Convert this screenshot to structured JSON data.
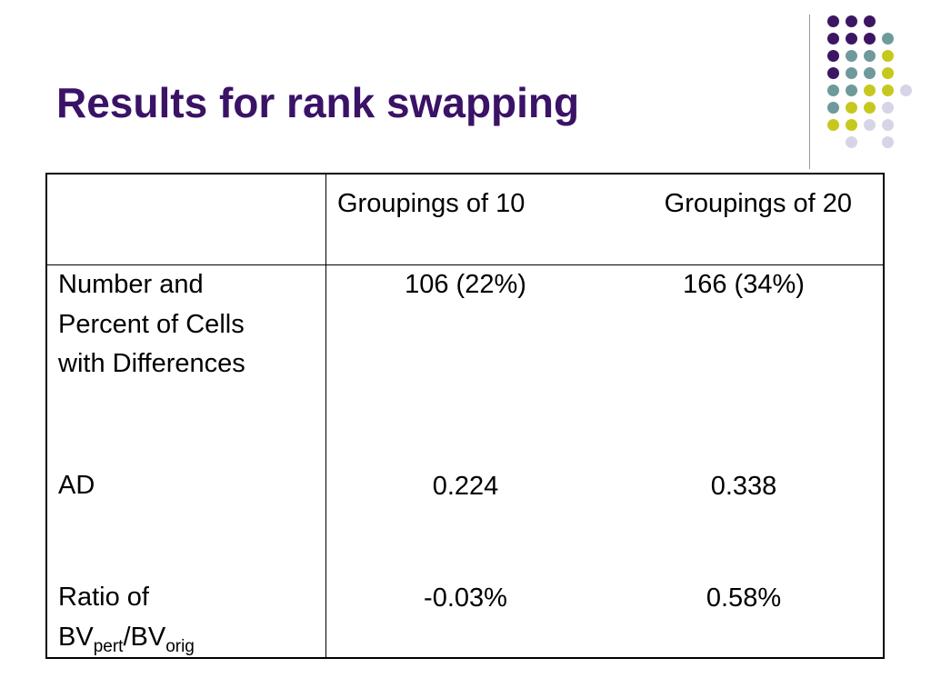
{
  "slide": {
    "title": "Results for rank swapping",
    "title_color": "#3a1266"
  },
  "decoration": {
    "palette": {
      "purple": "#3d1663",
      "teal": "#6e9a9b",
      "yellow": "#c7c81e",
      "lavender": "#d6d5e8"
    }
  },
  "table": {
    "columns": [
      "",
      "Groupings of 10",
      "Groupings of 20"
    ],
    "rows": {
      "cells": {
        "label_lines": [
          "Number and",
          "Percent of Cells",
          "with Differences"
        ],
        "g10": "106 (22%)",
        "g20": "166 (34%)"
      },
      "ad": {
        "label": "AD",
        "g10": "0.224",
        "g20": "0.338"
      },
      "ratio": {
        "label_line1": "Ratio of",
        "bv1": "BV",
        "sub1": "pert",
        "slash": "/BV",
        "sub2": "orig",
        "g10": "-0.03%",
        "g20": "0.58%"
      }
    }
  }
}
